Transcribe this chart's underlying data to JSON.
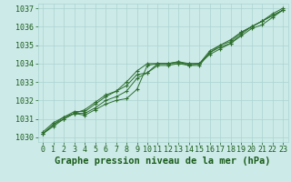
{
  "xlabel": "Graphe pression niveau de la mer (hPa)",
  "x": [
    0,
    1,
    2,
    3,
    4,
    5,
    6,
    7,
    8,
    9,
    10,
    11,
    12,
    13,
    14,
    15,
    16,
    17,
    18,
    19,
    20,
    21,
    22,
    23
  ],
  "series": [
    [
      1030.2,
      1030.6,
      1031.0,
      1031.3,
      1031.2,
      1031.5,
      1031.8,
      1032.0,
      1032.1,
      1032.6,
      1033.9,
      1034.0,
      1034.0,
      1034.0,
      1033.9,
      1034.0,
      1034.5,
      1034.8,
      1035.1,
      1035.5,
      1035.9,
      1036.1,
      1036.5,
      1036.9
    ],
    [
      1030.2,
      1030.7,
      1031.0,
      1031.3,
      1031.3,
      1031.6,
      1032.0,
      1032.2,
      1032.5,
      1033.2,
      1033.5,
      1034.0,
      1034.0,
      1034.1,
      1033.9,
      1033.9,
      1034.6,
      1035.0,
      1035.3,
      1035.7,
      1036.0,
      1036.3,
      1036.6,
      1036.9
    ],
    [
      1030.2,
      1030.7,
      1031.1,
      1031.4,
      1031.4,
      1031.8,
      1032.2,
      1032.5,
      1032.8,
      1033.4,
      1033.5,
      1033.9,
      1033.9,
      1034.0,
      1034.0,
      1034.0,
      1034.6,
      1034.9,
      1035.1,
      1035.6,
      1036.0,
      1036.3,
      1036.6,
      1036.9
    ],
    [
      1030.3,
      1030.8,
      1031.1,
      1031.3,
      1031.5,
      1031.9,
      1032.3,
      1032.5,
      1033.0,
      1033.6,
      1034.0,
      1034.0,
      1034.0,
      1034.1,
      1034.0,
      1034.0,
      1034.7,
      1035.0,
      1035.2,
      1035.7,
      1036.0,
      1036.3,
      1036.7,
      1037.0
    ]
  ],
  "line_color": "#2d6e2d",
  "marker_color": "#2d6e2d",
  "bg_color": "#cceae8",
  "grid_color": "#aad4d0",
  "tick_color": "#1a5c1a",
  "label_color": "#1a5c1a",
  "ylim": [
    1029.75,
    1037.25
  ],
  "yticks": [
    1030,
    1031,
    1032,
    1033,
    1034,
    1035,
    1036,
    1037
  ],
  "xticks": [
    0,
    1,
    2,
    3,
    4,
    5,
    6,
    7,
    8,
    9,
    10,
    11,
    12,
    13,
    14,
    15,
    16,
    17,
    18,
    19,
    20,
    21,
    22,
    23
  ],
  "xlabel_fontsize": 7.5,
  "tick_fontsize": 6.0
}
